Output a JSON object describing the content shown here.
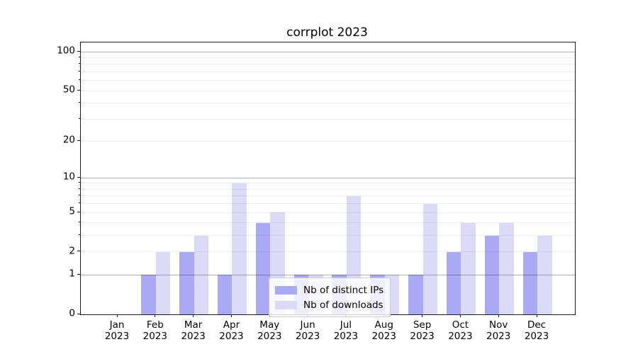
{
  "chart_data": {
    "type": "bar",
    "title": "corrplot 2023",
    "categories": [
      "Jan",
      "Feb",
      "Mar",
      "Apr",
      "May",
      "Jun",
      "Jul",
      "Aug",
      "Sep",
      "Oct",
      "Nov",
      "Dec"
    ],
    "category_year": "2023",
    "series": [
      {
        "name": "Nb of distinct IPs",
        "color": "#a9a9f4",
        "values": [
          0,
          1,
          2,
          1,
          4,
          1,
          1,
          1,
          1,
          2,
          3,
          2
        ]
      },
      {
        "name": "Nb of downloads",
        "color": "#dbdbf8",
        "values": [
          0,
          2,
          3,
          9,
          5,
          1,
          7,
          1,
          6,
          4,
          4,
          3
        ]
      }
    ],
    "xlabel": "",
    "ylabel": "",
    "yscale": "log1p",
    "ylim": [
      0,
      118
    ],
    "yticks": [
      {
        "label": "100",
        "value": 100
      },
      {
        "label": "50",
        "value": 50
      },
      {
        "label": "20",
        "value": 20
      },
      {
        "label": "10",
        "value": 10
      },
      {
        "label": "5",
        "value": 5
      },
      {
        "label": "2",
        "value": 2
      },
      {
        "label": "1",
        "value": 1
      },
      {
        "label": "0",
        "value": 0
      }
    ],
    "grid": {
      "major_values": [
        1,
        10,
        100
      ],
      "minor_values": [
        2,
        3,
        4,
        5,
        6,
        7,
        8,
        9,
        20,
        30,
        40,
        50,
        60,
        70,
        80,
        90
      ]
    },
    "minor_tick_values": [
      3,
      4,
      6,
      7,
      8,
      9,
      30,
      40,
      60,
      70,
      80,
      90
    ],
    "legend": {
      "position": "lower-center",
      "items": [
        "Nb of distinct IPs",
        "Nb of downloads"
      ]
    },
    "colors": {
      "major_grid": "rgba(0,0,0,0.30)",
      "minor_grid": "rgba(0,0,0,0.075)",
      "spine": "#1a1a1a",
      "text": "#000000",
      "legend_border": "#cccccc"
    }
  }
}
